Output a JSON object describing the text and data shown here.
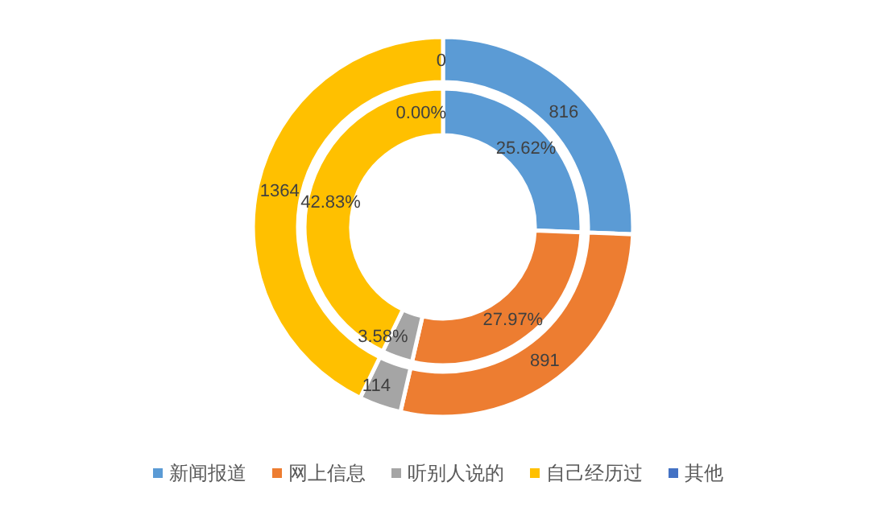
{
  "chart_data": {
    "type": "donut",
    "categories": [
      "新闻报道",
      "网上信息",
      "听别人说的",
      "自己经历过",
      "其他"
    ],
    "colors": [
      "#5b9bd5",
      "#ed7d31",
      "#a5a5a5",
      "#ffc000",
      "#4472c4"
    ],
    "series": [
      {
        "values": [
          25.62,
          27.97,
          3.58,
          42.83,
          0.0
        ],
        "value_labels": [
          "25.62%",
          "27.97%",
          "3.58%",
          "42.83%",
          "0.00%"
        ]
      },
      {
        "values": [
          816,
          891,
          114,
          1364,
          0
        ],
        "value_labels": [
          "816",
          "891",
          "114",
          "1364",
          "0"
        ]
      }
    ],
    "legend": "bottom"
  }
}
